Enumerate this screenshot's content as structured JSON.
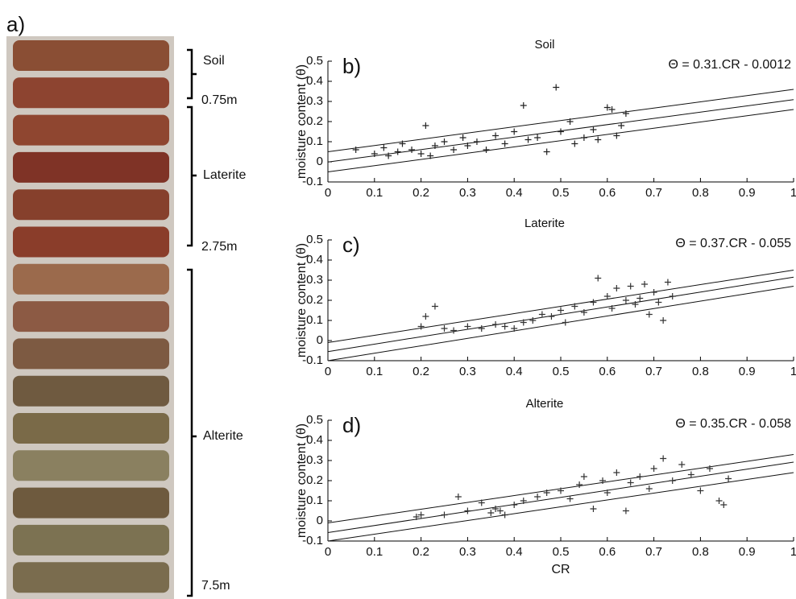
{
  "core": {
    "label": "a)",
    "layers": [
      {
        "name": "Soil",
        "depth": "0.75m"
      },
      {
        "name": "Laterite",
        "depth": "2.75m"
      },
      {
        "name": "Alterite",
        "depth": "7.5m"
      }
    ]
  },
  "chart_data": [
    {
      "type": "scatter",
      "title": "Soil",
      "panel_label": "b)",
      "equation": "Θ = 0.31.CR - 0.0012",
      "ylabel": "moisture content (θ)",
      "xlim": [
        0,
        1
      ],
      "ylim": [
        -0.1,
        0.5
      ],
      "xticks": [
        0,
        0.1,
        0.2,
        0.3,
        0.4,
        0.5,
        0.6,
        0.7,
        0.8,
        0.9,
        1
      ],
      "yticks": [
        -0.1,
        0,
        0.1,
        0.2,
        0.3,
        0.4,
        0.5
      ],
      "color": "#222222",
      "x": [
        0.06,
        0.1,
        0.12,
        0.13,
        0.15,
        0.16,
        0.18,
        0.2,
        0.21,
        0.22,
        0.23,
        0.25,
        0.27,
        0.29,
        0.3,
        0.32,
        0.34,
        0.36,
        0.38,
        0.4,
        0.42,
        0.43,
        0.45,
        0.47,
        0.49,
        0.5,
        0.52,
        0.53,
        0.55,
        0.57,
        0.58,
        0.6,
        0.61,
        0.62,
        0.64,
        0.63
      ],
      "values": [
        0.06,
        0.04,
        0.07,
        0.03,
        0.05,
        0.09,
        0.06,
        0.04,
        0.18,
        0.03,
        0.08,
        0.1,
        0.06,
        0.12,
        0.08,
        0.1,
        0.06,
        0.13,
        0.09,
        0.15,
        0.28,
        0.11,
        0.12,
        0.05,
        0.37,
        0.15,
        0.2,
        0.09,
        0.12,
        0.16,
        0.11,
        0.27,
        0.26,
        0.13,
        0.24,
        0.18
      ],
      "lines": [
        {
          "x": [
            0,
            1
          ],
          "values": [
            0.05,
            0.36
          ]
        },
        {
          "x": [
            0,
            1
          ],
          "values": [
            -0.0012,
            0.3088
          ]
        },
        {
          "x": [
            0,
            1
          ],
          "values": [
            -0.05,
            0.26
          ]
        }
      ]
    },
    {
      "type": "scatter",
      "title": "Laterite",
      "panel_label": "c)",
      "equation": "Θ = 0.37.CR - 0.055",
      "ylabel": "moisture content (θ)",
      "xlim": [
        0,
        1
      ],
      "ylim": [
        -0.1,
        0.5
      ],
      "xticks": [
        0,
        0.1,
        0.2,
        0.3,
        0.4,
        0.5,
        0.6,
        0.7,
        0.8,
        0.9,
        1
      ],
      "yticks": [
        -0.1,
        0,
        0.1,
        0.2,
        0.3,
        0.4,
        0.5
      ],
      "color": "#333333",
      "x": [
        0.2,
        0.21,
        0.23,
        0.25,
        0.27,
        0.3,
        0.33,
        0.36,
        0.38,
        0.4,
        0.42,
        0.44,
        0.46,
        0.48,
        0.5,
        0.51,
        0.53,
        0.55,
        0.57,
        0.58,
        0.6,
        0.61,
        0.62,
        0.64,
        0.65,
        0.66,
        0.67,
        0.68,
        0.69,
        0.7,
        0.71,
        0.72,
        0.73,
        0.74
      ],
      "values": [
        0.07,
        0.12,
        0.17,
        0.06,
        0.05,
        0.07,
        0.06,
        0.08,
        0.07,
        0.06,
        0.09,
        0.1,
        0.13,
        0.12,
        0.15,
        0.09,
        0.17,
        0.14,
        0.19,
        0.31,
        0.22,
        0.16,
        0.26,
        0.2,
        0.27,
        0.18,
        0.21,
        0.28,
        0.13,
        0.24,
        0.19,
        0.1,
        0.29,
        0.22
      ],
      "lines": [
        {
          "x": [
            0,
            1
          ],
          "values": [
            -0.01,
            0.35
          ]
        },
        {
          "x": [
            0,
            1
          ],
          "values": [
            -0.055,
            0.315
          ]
        },
        {
          "x": [
            0,
            1
          ],
          "values": [
            -0.1,
            0.27
          ]
        }
      ]
    },
    {
      "type": "scatter",
      "title": "Alterite",
      "panel_label": "d)",
      "equation": "Θ = 0.35.CR - 0.058",
      "ylabel": "moisture content (θ)",
      "xlabel": "CR",
      "xlim": [
        0,
        1
      ],
      "ylim": [
        -0.1,
        0.5
      ],
      "xticks": [
        0,
        0.1,
        0.2,
        0.3,
        0.4,
        0.5,
        0.6,
        0.7,
        0.8,
        0.9,
        1
      ],
      "yticks": [
        -0.1,
        0,
        0.1,
        0.2,
        0.3,
        0.4,
        0.5
      ],
      "color": "#333333",
      "x": [
        0.19,
        0.2,
        0.25,
        0.28,
        0.3,
        0.33,
        0.35,
        0.36,
        0.37,
        0.38,
        0.4,
        0.42,
        0.45,
        0.47,
        0.5,
        0.52,
        0.54,
        0.55,
        0.57,
        0.59,
        0.6,
        0.62,
        0.64,
        0.65,
        0.67,
        0.69,
        0.7,
        0.72,
        0.74,
        0.76,
        0.78,
        0.8,
        0.82,
        0.84,
        0.85,
        0.86
      ],
      "values": [
        0.02,
        0.03,
        0.03,
        0.12,
        0.05,
        0.09,
        0.04,
        0.06,
        0.05,
        0.03,
        0.08,
        0.1,
        0.12,
        0.14,
        0.15,
        0.11,
        0.18,
        0.22,
        0.06,
        0.2,
        0.14,
        0.24,
        0.05,
        0.19,
        0.22,
        0.16,
        0.26,
        0.31,
        0.2,
        0.28,
        0.23,
        0.15,
        0.26,
        0.1,
        0.08,
        0.21
      ],
      "lines": [
        {
          "x": [
            0,
            1
          ],
          "values": [
            -0.01,
            0.33
          ]
        },
        {
          "x": [
            0,
            1
          ],
          "values": [
            -0.058,
            0.292
          ]
        },
        {
          "x": [
            0,
            1
          ],
          "values": [
            -0.1,
            0.24
          ]
        }
      ]
    }
  ]
}
